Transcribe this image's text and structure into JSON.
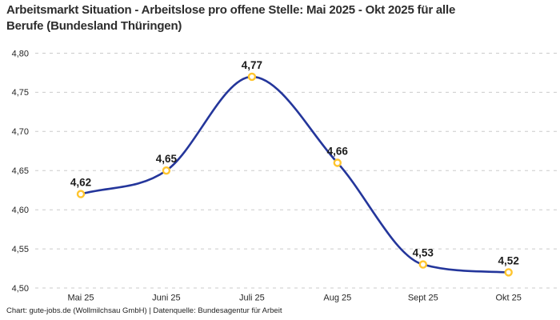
{
  "page": {
    "title": "Arbeitsmarkt Situation - Arbeitslose pro offene Stelle: Mai 2025 - Okt 2025 für alle\nBerufe (Bundesland Thüringen)",
    "source_line": "Chart: gute-jobs.de (Wollmilchsau GmbH) | Datenquelle: Bundesagentur für Arbeit"
  },
  "chart_data": {
    "type": "line",
    "title": "Arbeitsmarkt Situation - Arbeitslose pro offene Stelle: Mai 2025 - Okt 2025 für alle Berufe (Bundesland Thüringen)",
    "categories": [
      "Mai 25",
      "Juni 25",
      "Juli 25",
      "Aug 25",
      "Sept 25",
      "Okt 25"
    ],
    "values": [
      4.62,
      4.65,
      4.77,
      4.66,
      4.53,
      4.52
    ],
    "point_labels": [
      "4,62",
      "4,65",
      "4,77",
      "4,66",
      "4,53",
      "4,52"
    ],
    "ylim": [
      4.5,
      4.8
    ],
    "y_ticks": [
      {
        "value": 4.8,
        "label": "4,80"
      },
      {
        "value": 4.75,
        "label": "4,75"
      },
      {
        "value": 4.7,
        "label": "4,70"
      },
      {
        "value": 4.65,
        "label": "4,65"
      },
      {
        "value": 4.6,
        "label": "4,60"
      },
      {
        "value": 4.55,
        "label": "4,55"
      },
      {
        "value": 4.5,
        "label": "4,50"
      }
    ],
    "xlabel": "",
    "ylabel": "",
    "grid": "horizontal-dashed",
    "legend": "none",
    "curve": "monotone",
    "colors": {
      "line": "#24369B",
      "marker_stroke": "#FFC52E",
      "marker_fill": "#FFFFFF",
      "grid": "#CBCBCB",
      "title_text": "#2D2D2D",
      "tick_text": "#262626",
      "label_text": "#1C1C1C"
    },
    "source": "Chart: gute-jobs.de (Wollmilchsau GmbH) | Datenquelle: Bundesagentur für Arbeit"
  }
}
